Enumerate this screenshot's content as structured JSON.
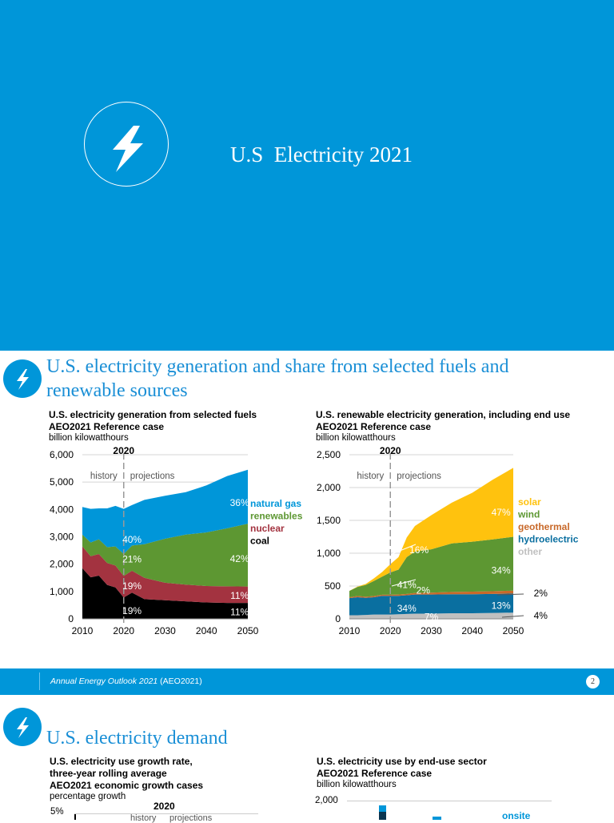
{
  "cover": {
    "title": "U.S  Electricity 2021",
    "icon": "lightning-bolt-icon",
    "background": "#0096d9"
  },
  "slide2": {
    "title_line1": "U.S. electricity generation and share from selected fuels and",
    "title_line2": "renewable sources",
    "icon": "lightning-bolt-icon"
  },
  "chart_data": [
    {
      "type": "area",
      "title": "U.S. electricity generation from selected fuels",
      "subtitle": "AEO2021 Reference case",
      "ylabel": "billion kilowatthours",
      "ylim": [
        0,
        6000
      ],
      "yticks": [
        "0",
        "1,000",
        "2,000",
        "3,000",
        "4,000",
        "5,000",
        "6,000"
      ],
      "xticks": [
        "2010",
        "2020",
        "2030",
        "2040",
        "2050"
      ],
      "marker": {
        "year": "2020",
        "left": "history",
        "right": "projections"
      },
      "grid": true,
      "x": [
        2010,
        2012,
        2014,
        2016,
        2018,
        2020,
        2022,
        2025,
        2030,
        2035,
        2040,
        2045,
        2050
      ],
      "series": [
        {
          "name": "coal",
          "color": "#000000",
          "values": [
            1850,
            1520,
            1580,
            1240,
            1150,
            780,
            960,
            720,
            680,
            640,
            600,
            580,
            580
          ]
        },
        {
          "name": "nuclear",
          "color": "#a33340",
          "values": [
            800,
            770,
            790,
            800,
            800,
            790,
            800,
            780,
            640,
            610,
            600,
            610,
            600
          ]
        },
        {
          "name": "renewables",
          "color": "#5d9732",
          "values": [
            430,
            500,
            540,
            580,
            700,
            800,
            920,
            1230,
            1610,
            1830,
            1960,
            2120,
            2300
          ]
        },
        {
          "name": "natural gas",
          "color": "#0096d9",
          "values": [
            1010,
            1230,
            1130,
            1420,
            1480,
            1650,
            1480,
            1620,
            1570,
            1550,
            1720,
            1910,
            1970
          ]
        }
      ],
      "annotations": [
        {
          "text": "40%",
          "x": 2022,
          "y": 2900
        },
        {
          "text": "21%",
          "x": 2022,
          "y": 2180
        },
        {
          "text": "19%",
          "x": 2022,
          "y": 1200
        },
        {
          "text": "19%",
          "x": 2022,
          "y": 300
        },
        {
          "text": "36%",
          "x": 2048,
          "y": 4250
        },
        {
          "text": "42%",
          "x": 2048,
          "y": 2200
        },
        {
          "text": "11%",
          "x": 2048,
          "y": 850
        },
        {
          "text": "11%",
          "x": 2048,
          "y": 250
        }
      ],
      "legend": [
        "natural gas",
        "renewables",
        "nuclear",
        "coal"
      ]
    },
    {
      "type": "area",
      "title": "U.S. renewable electricity generation, including end use",
      "subtitle": "AEO2021 Reference case",
      "ylabel": "billion kilowatthours",
      "ylim": [
        0,
        2500
      ],
      "yticks": [
        "0",
        "500",
        "1,000",
        "1,500",
        "2,000",
        "2,500"
      ],
      "xticks": [
        "2010",
        "2020",
        "2030",
        "2040",
        "2050"
      ],
      "marker": {
        "year": "2020",
        "left": "history",
        "right": "projections"
      },
      "grid": true,
      "x": [
        2010,
        2012,
        2014,
        2016,
        2018,
        2020,
        2022,
        2024,
        2026,
        2030,
        2035,
        2040,
        2045,
        2050
      ],
      "series": [
        {
          "name": "other",
          "color": "#c0c0c0",
          "values": [
            55,
            55,
            60,
            65,
            65,
            65,
            70,
            75,
            80,
            80,
            85,
            85,
            90,
            95
          ]
        },
        {
          "name": "hydroelectric",
          "color": "#0a6fa0",
          "values": [
            260,
            275,
            260,
            265,
            285,
            285,
            280,
            285,
            290,
            290,
            290,
            290,
            290,
            290
          ]
        },
        {
          "name": "geothermal",
          "color": "#c8692a",
          "values": [
            15,
            17,
            17,
            18,
            18,
            18,
            20,
            20,
            25,
            30,
            35,
            40,
            40,
            45
          ]
        },
        {
          "name": "wind",
          "color": "#5d9732",
          "values": [
            95,
            140,
            180,
            230,
            275,
            340,
            380,
            560,
            630,
            660,
            740,
            760,
            790,
            820
          ]
        },
        {
          "name": "solar",
          "color": "#ffc20e",
          "values": [
            2,
            5,
            15,
            40,
            70,
            125,
            190,
            300,
            390,
            520,
            620,
            745,
            910,
            1050
          ]
        }
      ],
      "annotations": [
        {
          "text": "16%",
          "x": 2027,
          "y": 1050
        },
        {
          "text": "41%",
          "x": 2024,
          "y": 520
        },
        {
          "text": "2%",
          "x": 2028,
          "y": 430
        },
        {
          "text": "34%",
          "x": 2024,
          "y": 160
        },
        {
          "text": "7%",
          "x": 2030,
          "y": 30
        },
        {
          "text": "47%",
          "x": 2047,
          "y": 1620
        },
        {
          "text": "34%",
          "x": 2047,
          "y": 740
        },
        {
          "text": "13%",
          "x": 2047,
          "y": 200
        },
        {
          "text": "2%",
          "x": 2055,
          "y": 390
        },
        {
          "text": "4%",
          "x": 2055,
          "y": 50
        }
      ],
      "legend": [
        "solar",
        "wind",
        "geothermal",
        "hydroelectric",
        "other"
      ]
    }
  ],
  "footer": {
    "italic_text": "Annual Energy Outlook 2021",
    "text": " (AEO2021)",
    "page": "2"
  },
  "slide3": {
    "title": "U.S. electricity demand",
    "icon": "lightning-bolt-icon",
    "left_chart": {
      "title_lines": [
        "U.S. electricity use growth rate,",
        "three-year rolling average",
        "AEO2021 economic growth cases"
      ],
      "unit": "percentage growth",
      "marker_year": "2020",
      "ytick_top": "5%",
      "marker_left": "history",
      "marker_right": "projections"
    },
    "right_chart": {
      "title_lines": [
        "U.S. electricity use by end-use sector",
        "AEO2021 Reference case"
      ],
      "unit": "billion kilowatthours",
      "ytick_top": "2,000",
      "legend_partial": "onsite"
    }
  }
}
